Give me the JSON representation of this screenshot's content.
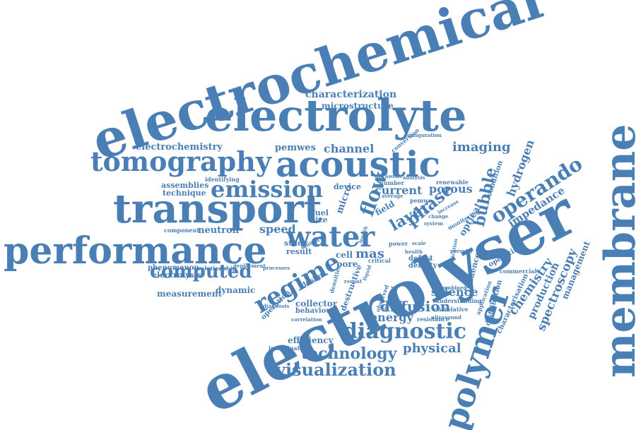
{
  "words": [
    {
      "text": "electrochemical"
    },
    {
      "text": "electrolyte"
    },
    {
      "text": "characterization"
    },
    {
      "text": "microstructure"
    },
    {
      "text": "tomography"
    },
    {
      "text": "acoustic"
    },
    {
      "text": "emission"
    },
    {
      "text": "transport"
    },
    {
      "text": "performance"
    },
    {
      "text": "water"
    },
    {
      "text": "electrolyser"
    },
    {
      "text": "membrane"
    },
    {
      "text": "polymer"
    },
    {
      "text": "electrochemistry"
    },
    {
      "text": "pemwes"
    },
    {
      "text": "channel"
    },
    {
      "text": "imaging"
    },
    {
      "text": "hydrogen"
    },
    {
      "text": "operando"
    },
    {
      "text": "bubble"
    },
    {
      "text": "flow"
    },
    {
      "text": "layer"
    },
    {
      "text": "phase"
    },
    {
      "text": "current"
    },
    {
      "text": "porous"
    },
    {
      "text": "regime"
    },
    {
      "text": "computed"
    },
    {
      "text": "neutron"
    },
    {
      "text": "speed"
    },
    {
      "text": "result"
    },
    {
      "text": "study"
    },
    {
      "text": "assemblies"
    },
    {
      "text": "technique"
    },
    {
      "text": "electrolysis"
    },
    {
      "text": "phenomenon"
    },
    {
      "text": "measurement"
    },
    {
      "text": "dynamic"
    },
    {
      "text": "diagnostic"
    },
    {
      "text": "diffusion"
    },
    {
      "text": "energy"
    },
    {
      "text": "technology"
    },
    {
      "text": "physical"
    },
    {
      "text": "visualization"
    },
    {
      "text": "science"
    },
    {
      "text": "impedance"
    },
    {
      "text": "spectroscopy"
    },
    {
      "text": "chemistry"
    },
    {
      "text": "production"
    },
    {
      "text": "management"
    },
    {
      "text": "efficiency"
    },
    {
      "text": "collector"
    },
    {
      "text": "behaviour"
    },
    {
      "text": "mas"
    },
    {
      "text": "cell"
    },
    {
      "text": "pore"
    },
    {
      "text": "size"
    },
    {
      "text": "fuel"
    },
    {
      "text": "micro"
    },
    {
      "text": "field"
    },
    {
      "text": "device"
    },
    {
      "text": "number"
    },
    {
      "text": "pemwe"
    },
    {
      "text": "renewable"
    },
    {
      "text": "condition"
    },
    {
      "text": "optical"
    },
    {
      "text": "defect"
    },
    {
      "text": "density"
    },
    {
      "text": "influence"
    },
    {
      "text": "commercial"
    },
    {
      "text": "operating"
    },
    {
      "text": "distribution"
    },
    {
      "text": "characterisation"
    },
    {
      "text": "design"
    },
    {
      "text": "destructive"
    },
    {
      "text": "resistance"
    },
    {
      "text": "investigation"
    },
    {
      "text": "relationship"
    },
    {
      "text": "component"
    },
    {
      "text": "identifying"
    },
    {
      "text": "conversion"
    },
    {
      "text": "configuration"
    },
    {
      "text": "operation"
    },
    {
      "text": "correlative"
    },
    {
      "text": "understanding"
    },
    {
      "text": "application"
    },
    {
      "text": "ultrasound"
    },
    {
      "text": "combined"
    },
    {
      "text": "monitoring"
    },
    {
      "text": "critical"
    },
    {
      "text": "power"
    },
    {
      "text": "health"
    },
    {
      "text": "scale"
    },
    {
      "text": "change"
    },
    {
      "text": "system"
    },
    {
      "text": "analysis"
    },
    {
      "text": "increase"
    },
    {
      "text": "ultrasonic"
    },
    {
      "text": "processes"
    },
    {
      "text": "diagnosis"
    },
    {
      "text": "correlation"
    },
    {
      "text": "densities"
    },
    {
      "text": "storage"
    },
    {
      "text": "observed"
    },
    {
      "text": "material"
    },
    {
      "text": "liquid"
    },
    {
      "text": "length"
    },
    {
      "text": "fabrication"
    },
    {
      "text": "porosity"
    },
    {
      "text": "method"
    },
    {
      "text": "average"
    },
    {
      "text": "recent"
    },
    {
      "text": "deployment"
    },
    {
      "text": "strategies"
    },
    {
      "text": "development"
    }
  ]
}
